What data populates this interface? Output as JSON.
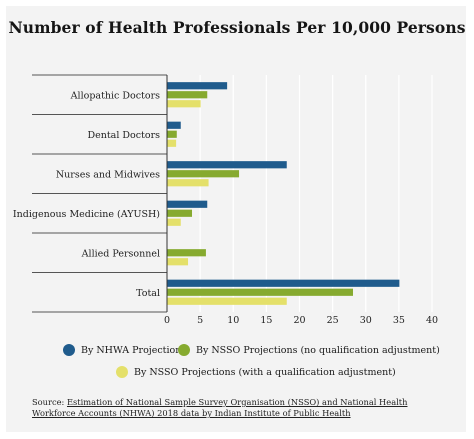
{
  "colors": {
    "background": "#f3f3f3",
    "nhwa": "#1f5b8c",
    "nsso_no_adj": "#86aa2f",
    "nsso_adj": "#e4e06a",
    "gridline": "#ffffff"
  },
  "legend": [
    {
      "label": "By NHWA Projections",
      "color": "#1f5b8c"
    },
    {
      "label": "By NSSO Projections (no qualification adjustment)",
      "color": "#86aa2f"
    },
    {
      "label": "By NSSO Projections (with a qualification adjustment)",
      "color": "#e4e06a"
    }
  ],
  "source": {
    "prefix": "Source: ",
    "link_text": "Estimation of National Sample Survey Organisation (NSSO) and National Health Workforce Accounts (NHWA) 2018 data by Indian Institute of Public Health"
  },
  "chart_data": {
    "type": "bar",
    "orientation": "horizontal",
    "title": "Number of Health Professionals Per 10,000 Persons",
    "categories": [
      "Allopathic Doctors",
      "Dental Doctors",
      "Nurses and Midwives",
      "Indigenous Medicine (AYUSH)",
      "Allied Personnel",
      "Total"
    ],
    "series": [
      {
        "name": "By NHWA Projections",
        "values": [
          9.0,
          2.0,
          18.0,
          6.0,
          0,
          35.0
        ]
      },
      {
        "name": "By NSSO Projections (no qualification adjustment)",
        "values": [
          6.0,
          1.4,
          10.8,
          3.7,
          5.8,
          28.0
        ]
      },
      {
        "name": "By NSSO Projections (with a qualification adjustment)",
        "values": [
          5.0,
          1.3,
          6.2,
          2.0,
          3.1,
          18.0
        ]
      }
    ],
    "xticks": [
      "0",
      "5",
      "10",
      "15",
      "20",
      "25",
      "30",
      "35",
      "40"
    ],
    "xlim": [
      0,
      40
    ],
    "grid": true,
    "legend_position": "bottom"
  }
}
